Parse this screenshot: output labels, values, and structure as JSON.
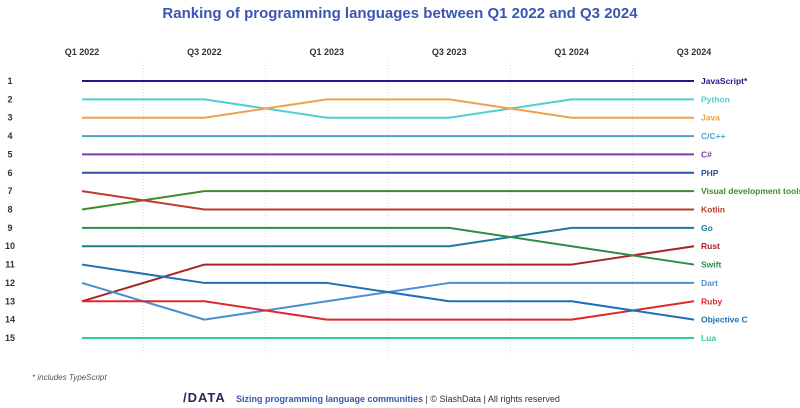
{
  "chart_data": {
    "type": "line",
    "title": "Ranking of programming languages between Q1 2022 and Q3 2024",
    "categories": [
      "Q1 2022",
      "Q3 2022",
      "Q1 2023",
      "Q3 2023",
      "Q1 2024",
      "Q3 2024"
    ],
    "y_ticks": [
      1,
      2,
      3,
      4,
      5,
      6,
      7,
      8,
      9,
      10,
      11,
      12,
      13,
      14,
      15
    ],
    "ylim": [
      1,
      15
    ],
    "y_inverted": true,
    "grid": "vertical dotted",
    "series": [
      {
        "name": "JavaScript*",
        "color": "#1f1a8c",
        "values": [
          1,
          1,
          1,
          1,
          1,
          1
        ]
      },
      {
        "name": "Python",
        "color": "#4ecfd4",
        "values": [
          2,
          2,
          3,
          3,
          2,
          2
        ]
      },
      {
        "name": "Java",
        "color": "#f0a04b",
        "values": [
          3,
          3,
          2,
          2,
          3,
          3
        ]
      },
      {
        "name": "C/C++",
        "color": "#4aa3c8",
        "values": [
          4,
          4,
          4,
          4,
          4,
          4
        ]
      },
      {
        "name": "C#",
        "color": "#7b3fa8",
        "values": [
          5,
          5,
          5,
          5,
          5,
          5
        ]
      },
      {
        "name": "PHP",
        "color": "#2b4fa8",
        "values": [
          6,
          6,
          6,
          6,
          6,
          6
        ]
      },
      {
        "name": "Visual development tools",
        "color": "#3f8a2a",
        "values": [
          8,
          7,
          7,
          7,
          7,
          7
        ]
      },
      {
        "name": "Kotlin",
        "color": "#c0392b",
        "values": [
          7,
          8,
          8,
          8,
          8,
          8
        ]
      },
      {
        "name": "Go",
        "color": "#1a7a9c",
        "values": [
          10,
          10,
          10,
          10,
          9,
          9
        ]
      },
      {
        "name": "Rust",
        "color": "#a82424",
        "values": [
          13,
          11,
          11,
          11,
          11,
          10
        ]
      },
      {
        "name": "Swift",
        "color": "#2e8b4f",
        "values": [
          9,
          9,
          9,
          9,
          10,
          11
        ]
      },
      {
        "name": "Dart",
        "color": "#4a8fd0",
        "values": [
          12,
          14,
          13,
          12,
          12,
          12
        ]
      },
      {
        "name": "Ruby",
        "color": "#e0262e",
        "values": [
          13,
          13,
          14,
          14,
          14,
          13
        ]
      },
      {
        "name": "Objective C",
        "color": "#1e6fb5",
        "values": [
          11,
          12,
          12,
          13,
          13,
          14
        ]
      },
      {
        "name": "Lua",
        "color": "#2ecf8e",
        "values": [
          15,
          15,
          15,
          15,
          15,
          15
        ]
      }
    ],
    "footnote": "* includes TypeScript"
  },
  "footer": {
    "logo": "/DATA",
    "bold_text": "Sizing programming language communities",
    "rest_text": " | © SlashData | All rights reserved"
  }
}
